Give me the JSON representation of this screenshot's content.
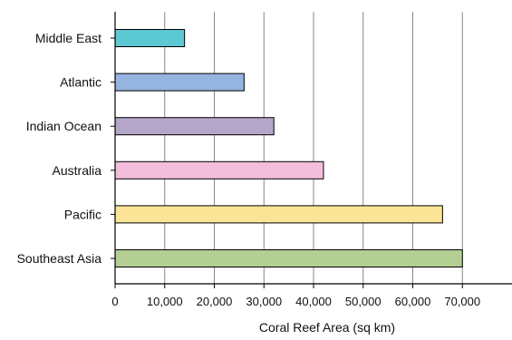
{
  "chart_data": {
    "type": "bar",
    "orientation": "horizontal",
    "categories": [
      "Middle East",
      "Atlantic",
      "Indian Ocean",
      "Australia",
      "Pacific",
      "Southeast Asia"
    ],
    "values": [
      14000,
      26000,
      32000,
      42000,
      66000,
      70000
    ],
    "colors": [
      "#5bc8d2",
      "#95b4e0",
      "#b3a6c8",
      "#f2bedb",
      "#fbe496",
      "#b3cf93"
    ],
    "bar_stroke": "#000000",
    "xlabel": "Coral Reef Area (sq km)",
    "ylabel": "",
    "title": "",
    "xlim": [
      0,
      80000
    ],
    "xticks": [
      0,
      10000,
      20000,
      30000,
      40000,
      50000,
      60000,
      70000
    ],
    "xtick_labels": [
      "0",
      "10,000",
      "20,000",
      "30,000",
      "40,000",
      "50,000",
      "60,000",
      "70,000"
    ],
    "grid": "vertical",
    "grid_color": "#888888",
    "legend": "none"
  }
}
